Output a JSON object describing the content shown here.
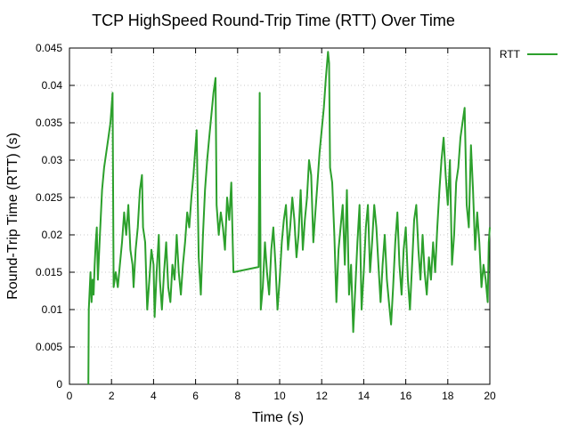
{
  "chart_data": {
    "type": "line",
    "title": "TCP HighSpeed Round-Trip Time (RTT) Over Time",
    "xlabel": "Time (s)",
    "ylabel": "Round-Trip Time (RTT) (s)",
    "xlim": [
      0,
      20
    ],
    "ylim": [
      0,
      0.045
    ],
    "x_ticks": [
      "0",
      "2",
      "4",
      "6",
      "8",
      "10",
      "12",
      "14",
      "16",
      "18",
      "20"
    ],
    "y_ticks": [
      "0",
      "0.005",
      "0.01",
      "0.015",
      "0.02",
      "0.025",
      "0.03",
      "0.035",
      "0.04",
      "0.045"
    ],
    "grid": true,
    "legend_position": "top-right",
    "series": [
      {
        "name": "RTT",
        "color": "#2ca02c",
        "points": [
          [
            0.9,
            0.0
          ],
          [
            0.92,
            0.01
          ],
          [
            1.0,
            0.015
          ],
          [
            1.05,
            0.011
          ],
          [
            1.1,
            0.014
          ],
          [
            1.15,
            0.012
          ],
          [
            1.2,
            0.016
          ],
          [
            1.25,
            0.019
          ],
          [
            1.3,
            0.021
          ],
          [
            1.35,
            0.014
          ],
          [
            1.45,
            0.02
          ],
          [
            1.55,
            0.026
          ],
          [
            1.65,
            0.029
          ],
          [
            1.75,
            0.031
          ],
          [
            1.85,
            0.033
          ],
          [
            1.95,
            0.035
          ],
          [
            2.05,
            0.039
          ],
          [
            2.1,
            0.013
          ],
          [
            2.2,
            0.015
          ],
          [
            2.3,
            0.013
          ],
          [
            2.4,
            0.016
          ],
          [
            2.5,
            0.019
          ],
          [
            2.6,
            0.023
          ],
          [
            2.7,
            0.02
          ],
          [
            2.8,
            0.024
          ],
          [
            2.9,
            0.018
          ],
          [
            3.0,
            0.016
          ],
          [
            3.05,
            0.013
          ],
          [
            3.15,
            0.018
          ],
          [
            3.25,
            0.021
          ],
          [
            3.35,
            0.026
          ],
          [
            3.45,
            0.028
          ],
          [
            3.5,
            0.021
          ],
          [
            3.6,
            0.019
          ],
          [
            3.7,
            0.01
          ],
          [
            3.8,
            0.014
          ],
          [
            3.9,
            0.018
          ],
          [
            4.0,
            0.016
          ],
          [
            4.05,
            0.009
          ],
          [
            4.15,
            0.015
          ],
          [
            4.25,
            0.02
          ],
          [
            4.3,
            0.014
          ],
          [
            4.4,
            0.01
          ],
          [
            4.5,
            0.015
          ],
          [
            4.6,
            0.019
          ],
          [
            4.7,
            0.013
          ],
          [
            4.8,
            0.011
          ],
          [
            4.9,
            0.016
          ],
          [
            5.0,
            0.014
          ],
          [
            5.1,
            0.02
          ],
          [
            5.2,
            0.015
          ],
          [
            5.3,
            0.012
          ],
          [
            5.4,
            0.016
          ],
          [
            5.5,
            0.019
          ],
          [
            5.6,
            0.023
          ],
          [
            5.7,
            0.021
          ],
          [
            5.8,
            0.025
          ],
          [
            5.9,
            0.028
          ],
          [
            6.0,
            0.032
          ],
          [
            6.05,
            0.034
          ],
          [
            6.15,
            0.017
          ],
          [
            6.25,
            0.012
          ],
          [
            6.35,
            0.02
          ],
          [
            6.45,
            0.026
          ],
          [
            6.55,
            0.03
          ],
          [
            6.65,
            0.033
          ],
          [
            6.75,
            0.036
          ],
          [
            6.85,
            0.039
          ],
          [
            6.95,
            0.041
          ],
          [
            7.0,
            0.024
          ],
          [
            7.1,
            0.02
          ],
          [
            7.2,
            0.023
          ],
          [
            7.3,
            0.021
          ],
          [
            7.4,
            0.018
          ],
          [
            7.5,
            0.025
          ],
          [
            7.6,
            0.022
          ],
          [
            7.7,
            0.027
          ],
          [
            7.8,
            0.015
          ],
          [
            9.0,
            0.0157
          ],
          [
            9.05,
            0.039
          ],
          [
            9.1,
            0.01
          ],
          [
            9.2,
            0.013
          ],
          [
            9.3,
            0.019
          ],
          [
            9.4,
            0.015
          ],
          [
            9.5,
            0.012
          ],
          [
            9.6,
            0.018
          ],
          [
            9.7,
            0.021
          ],
          [
            9.8,
            0.016
          ],
          [
            9.9,
            0.01
          ],
          [
            10.0,
            0.014
          ],
          [
            10.1,
            0.019
          ],
          [
            10.2,
            0.022
          ],
          [
            10.3,
            0.024
          ],
          [
            10.4,
            0.018
          ],
          [
            10.5,
            0.021
          ],
          [
            10.6,
            0.025
          ],
          [
            10.7,
            0.022
          ],
          [
            10.8,
            0.017
          ],
          [
            10.9,
            0.02
          ],
          [
            11.0,
            0.026
          ],
          [
            11.1,
            0.018
          ],
          [
            11.2,
            0.022
          ],
          [
            11.3,
            0.025
          ],
          [
            11.4,
            0.03
          ],
          [
            11.5,
            0.028
          ],
          [
            11.6,
            0.019
          ],
          [
            11.7,
            0.023
          ],
          [
            11.8,
            0.027
          ],
          [
            11.9,
            0.031
          ],
          [
            12.0,
            0.034
          ],
          [
            12.1,
            0.037
          ],
          [
            12.2,
            0.041
          ],
          [
            12.3,
            0.0445
          ],
          [
            12.35,
            0.043
          ],
          [
            12.4,
            0.029
          ],
          [
            12.5,
            0.027
          ],
          [
            12.6,
            0.02
          ],
          [
            12.7,
            0.011
          ],
          [
            12.8,
            0.018
          ],
          [
            12.9,
            0.021
          ],
          [
            13.0,
            0.024
          ],
          [
            13.1,
            0.016
          ],
          [
            13.2,
            0.026
          ],
          [
            13.3,
            0.012
          ],
          [
            13.4,
            0.016
          ],
          [
            13.5,
            0.007
          ],
          [
            13.6,
            0.013
          ],
          [
            13.7,
            0.019
          ],
          [
            13.8,
            0.024
          ],
          [
            13.9,
            0.01
          ],
          [
            14.0,
            0.015
          ],
          [
            14.1,
            0.021
          ],
          [
            14.2,
            0.024
          ],
          [
            14.3,
            0.015
          ],
          [
            14.4,
            0.019
          ],
          [
            14.5,
            0.024
          ],
          [
            14.6,
            0.021
          ],
          [
            14.7,
            0.016
          ],
          [
            14.8,
            0.011
          ],
          [
            14.9,
            0.016
          ],
          [
            15.0,
            0.02
          ],
          [
            15.1,
            0.014
          ],
          [
            15.2,
            0.011
          ],
          [
            15.3,
            0.008
          ],
          [
            15.4,
            0.013
          ],
          [
            15.5,
            0.019
          ],
          [
            15.6,
            0.023
          ],
          [
            15.7,
            0.016
          ],
          [
            15.8,
            0.012
          ],
          [
            15.9,
            0.018
          ],
          [
            16.0,
            0.021
          ],
          [
            16.1,
            0.014
          ],
          [
            16.2,
            0.01
          ],
          [
            16.3,
            0.016
          ],
          [
            16.4,
            0.022
          ],
          [
            16.5,
            0.024
          ],
          [
            16.6,
            0.018
          ],
          [
            16.7,
            0.014
          ],
          [
            16.8,
            0.02
          ],
          [
            16.9,
            0.015
          ],
          [
            17.0,
            0.012
          ],
          [
            17.1,
            0.017
          ],
          [
            17.2,
            0.014
          ],
          [
            17.3,
            0.019
          ],
          [
            17.4,
            0.015
          ],
          [
            17.5,
            0.021
          ],
          [
            17.6,
            0.026
          ],
          [
            17.7,
            0.03
          ],
          [
            17.8,
            0.033
          ],
          [
            17.9,
            0.028
          ],
          [
            18.0,
            0.024
          ],
          [
            18.1,
            0.03
          ],
          [
            18.2,
            0.016
          ],
          [
            18.3,
            0.02
          ],
          [
            18.4,
            0.027
          ],
          [
            18.5,
            0.029
          ],
          [
            18.6,
            0.033
          ],
          [
            18.7,
            0.035
          ],
          [
            18.8,
            0.037
          ],
          [
            18.9,
            0.024
          ],
          [
            19.0,
            0.021
          ],
          [
            19.1,
            0.032
          ],
          [
            19.2,
            0.026
          ],
          [
            19.3,
            0.018
          ],
          [
            19.4,
            0.023
          ],
          [
            19.5,
            0.019
          ],
          [
            19.6,
            0.013
          ],
          [
            19.7,
            0.016
          ],
          [
            19.8,
            0.014
          ],
          [
            19.9,
            0.011
          ],
          [
            19.95,
            0.019
          ],
          [
            20.0,
            0.021
          ]
        ]
      }
    ]
  }
}
